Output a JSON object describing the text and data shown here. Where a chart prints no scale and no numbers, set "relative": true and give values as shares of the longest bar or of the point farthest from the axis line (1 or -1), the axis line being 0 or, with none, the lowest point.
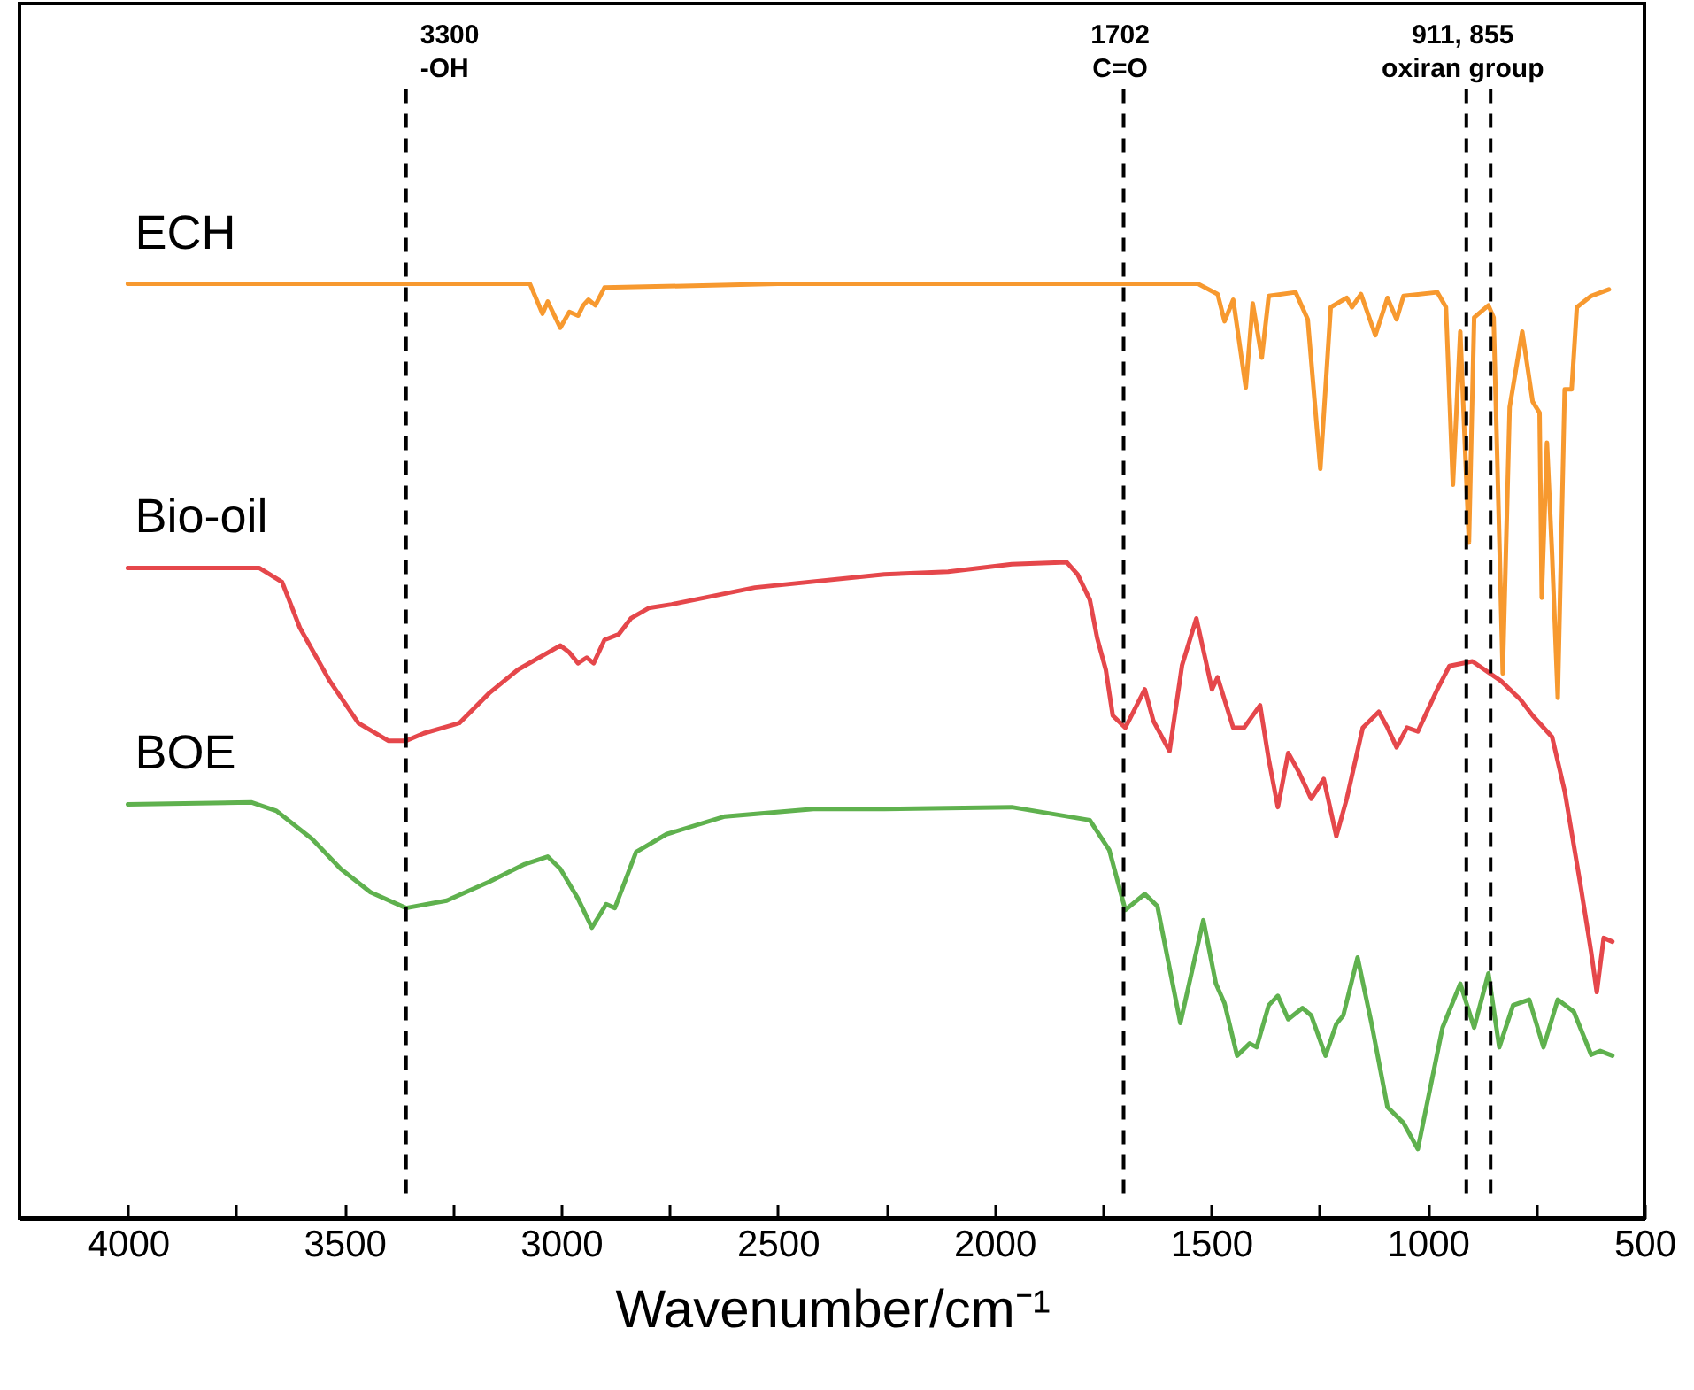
{
  "chart_data": {
    "type": "line",
    "relative": true,
    "xlabel": "Wavenumber/cm⁻¹",
    "xlim": [
      4250,
      500
    ],
    "xticks": [
      4000,
      {
        "value": 3750,
        "label": null
      },
      3500,
      {
        "value": 3250,
        "label": null
      },
      3000,
      {
        "value": 2750,
        "label": null
      },
      2500,
      {
        "value": 2250,
        "label": null
      },
      2000,
      {
        "value": 1750,
        "label": null
      },
      1500,
      {
        "value": 1250,
        "label": null
      },
      1000,
      {
        "value": 750,
        "label": null
      },
      500
    ],
    "series": [
      {
        "name": "ECH",
        "color": "#f7992f",
        "x": [
          4000,
          3600,
          3300,
          3072,
          3043,
          3031,
          3002,
          2981,
          2961,
          2949,
          2937,
          2921,
          2900,
          2500,
          2000,
          1530,
          1485,
          1469,
          1449,
          1420,
          1404,
          1383,
          1367,
          1305,
          1277,
          1248,
          1224,
          1187,
          1175,
          1154,
          1121,
          1093,
          1072,
          1056,
          978,
          958,
          942,
          925,
          905,
          893,
          860,
          848,
          827,
          811,
          782,
          758,
          742,
          737,
          725,
          713,
          700,
          684,
          668,
          656,
          623,
          582
        ],
        "values": [
          1.0,
          1.0,
          1.0,
          1.0,
          0.968,
          0.981,
          0.953,
          0.97,
          0.966,
          0.977,
          0.983,
          0.977,
          0.996,
          1.0,
          1.0,
          1.0,
          0.989,
          0.96,
          0.983,
          0.889,
          0.979,
          0.921,
          0.987,
          0.991,
          0.962,
          0.802,
          0.975,
          0.985,
          0.975,
          0.989,
          0.945,
          0.985,
          0.962,
          0.987,
          0.991,
          0.975,
          0.785,
          0.949,
          0.723,
          0.964,
          0.977,
          0.964,
          0.583,
          0.868,
          0.949,
          0.874,
          0.862,
          0.664,
          0.83,
          0.709,
          0.557,
          0.887,
          0.887,
          0.975,
          0.987,
          0.994
        ]
      },
      {
        "name": "Bio-oil",
        "color": "#e5474b",
        "x": [
          4000,
          3697,
          3644,
          3603,
          3534,
          3468,
          3399,
          3358,
          3317,
          3235,
          3166,
          3100,
          3002,
          2982,
          2961,
          2941,
          2925,
          2900,
          2867,
          2839,
          2798,
          2745,
          2553,
          2254,
          2107,
          1960,
          1833,
          1808,
          1780,
          1763,
          1743,
          1727,
          1698,
          1653,
          1633,
          1596,
          1567,
          1534,
          1514,
          1498,
          1485,
          1449,
          1424,
          1387,
          1367,
          1346,
          1322,
          1297,
          1269,
          1240,
          1211,
          1187,
          1150,
          1113,
          1093,
          1072,
          1048,
          1023,
          978,
          950,
          897,
          831,
          786,
          758,
          713,
          684,
          647,
          623,
          610,
          594,
          574
        ],
        "values": [
          0.696,
          0.696,
          0.681,
          0.632,
          0.575,
          0.53,
          0.511,
          0.511,
          0.519,
          0.53,
          0.562,
          0.587,
          0.613,
          0.606,
          0.594,
          0.6,
          0.594,
          0.619,
          0.625,
          0.642,
          0.653,
          0.657,
          0.675,
          0.689,
          0.692,
          0.7,
          0.702,
          0.689,
          0.662,
          0.621,
          0.587,
          0.538,
          0.525,
          0.566,
          0.532,
          0.5,
          0.592,
          0.642,
          0.6,
          0.566,
          0.579,
          0.525,
          0.525,
          0.549,
          0.491,
          0.44,
          0.498,
          0.477,
          0.449,
          0.47,
          0.409,
          0.449,
          0.525,
          0.542,
          0.525,
          0.504,
          0.525,
          0.521,
          0.566,
          0.591,
          0.596,
          0.575,
          0.555,
          0.538,
          0.515,
          0.457,
          0.355,
          0.285,
          0.242,
          0.3,
          0.296
        ]
      },
      {
        "name": "BOE",
        "color": "#5fb14e",
        "x": [
          4000,
          3714,
          3657,
          3575,
          3509,
          3440,
          3358,
          3264,
          3166,
          3084,
          3031,
          3002,
          2961,
          2929,
          2896,
          2876,
          2827,
          2757,
          2622,
          2418,
          2254,
          1960,
          1780,
          1735,
          1698,
          1653,
          1624,
          1571,
          1518,
          1489,
          1469,
          1440,
          1411,
          1395,
          1367,
          1346,
          1322,
          1289,
          1269,
          1236,
          1211,
          1195,
          1162,
          1130,
          1093,
          1056,
          1023,
          966,
          925,
          893,
          860,
          835,
          803,
          766,
          733,
          700,
          663,
          623,
          602,
          574
        ],
        "values": [
          0.443,
          0.445,
          0.436,
          0.406,
          0.374,
          0.349,
          0.332,
          0.34,
          0.36,
          0.379,
          0.387,
          0.374,
          0.342,
          0.311,
          0.336,
          0.332,
          0.392,
          0.411,
          0.43,
          0.438,
          0.438,
          0.44,
          0.426,
          0.394,
          0.33,
          0.347,
          0.334,
          0.209,
          0.319,
          0.251,
          0.23,
          0.174,
          0.187,
          0.183,
          0.228,
          0.238,
          0.213,
          0.225,
          0.217,
          0.174,
          0.208,
          0.217,
          0.279,
          0.209,
          0.119,
          0.102,
          0.074,
          0.204,
          0.251,
          0.204,
          0.262,
          0.183,
          0.228,
          0.234,
          0.183,
          0.234,
          0.221,
          0.175,
          0.179,
          0.174
        ]
      }
    ],
    "ref_lines": [
      {
        "axis": "x",
        "value": 3358,
        "label": "3300\n-OH",
        "line_style": "dashed"
      },
      {
        "axis": "x",
        "value": 1702,
        "label": "1702\nC=O",
        "line_style": "dashed"
      },
      {
        "axis": "x",
        "value": 911,
        "label": "911, 855\noxiran group",
        "line_style": "dashed"
      },
      {
        "axis": "x",
        "value": 855,
        "label": null,
        "line_style": "dashed"
      }
    ]
  }
}
